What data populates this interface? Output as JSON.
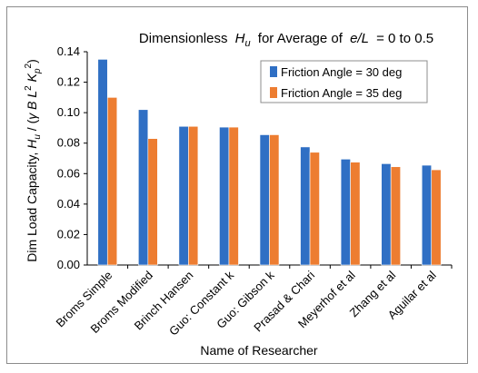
{
  "chart_data": {
    "type": "bar",
    "title_prefix": "Dimensionless",
    "title_symbol": "H",
    "title_sub": "u",
    "title_mid": "for Average  of",
    "title_var": "e/L",
    "title_suffix": "= 0 to 0.5",
    "xlabel": "Name of Researcher",
    "ylabel": "Dim  Load Capacity,  H_u / (γ B L² K_p²)",
    "ylim": [
      0,
      0.14
    ],
    "yticks": [
      "0.00",
      "0.02",
      "0.04",
      "0.06",
      "0.08",
      "0.10",
      "0.12",
      "0.14"
    ],
    "grid": false,
    "legend_position": "top-right",
    "categories": [
      "Broms Simple",
      "Broms Modified",
      "Brinch Hansen",
      "Guo: Constant k",
      "Guo: Gibson k",
      "Prasad & Chari",
      "Meyerhof et al",
      "Zhang et al",
      "Aguilar et al"
    ],
    "series": [
      {
        "name": "Friction Angle = 30 deg",
        "color": "#2f6fc4",
        "values": [
          0.135,
          0.102,
          0.091,
          0.0905,
          0.0855,
          0.0775,
          0.0695,
          0.0665,
          0.0655
        ]
      },
      {
        "name": "Friction Angle = 35 deg",
        "color": "#ed7d31",
        "values": [
          0.11,
          0.083,
          0.091,
          0.0905,
          0.0855,
          0.074,
          0.0675,
          0.0645,
          0.0625
        ]
      }
    ]
  }
}
